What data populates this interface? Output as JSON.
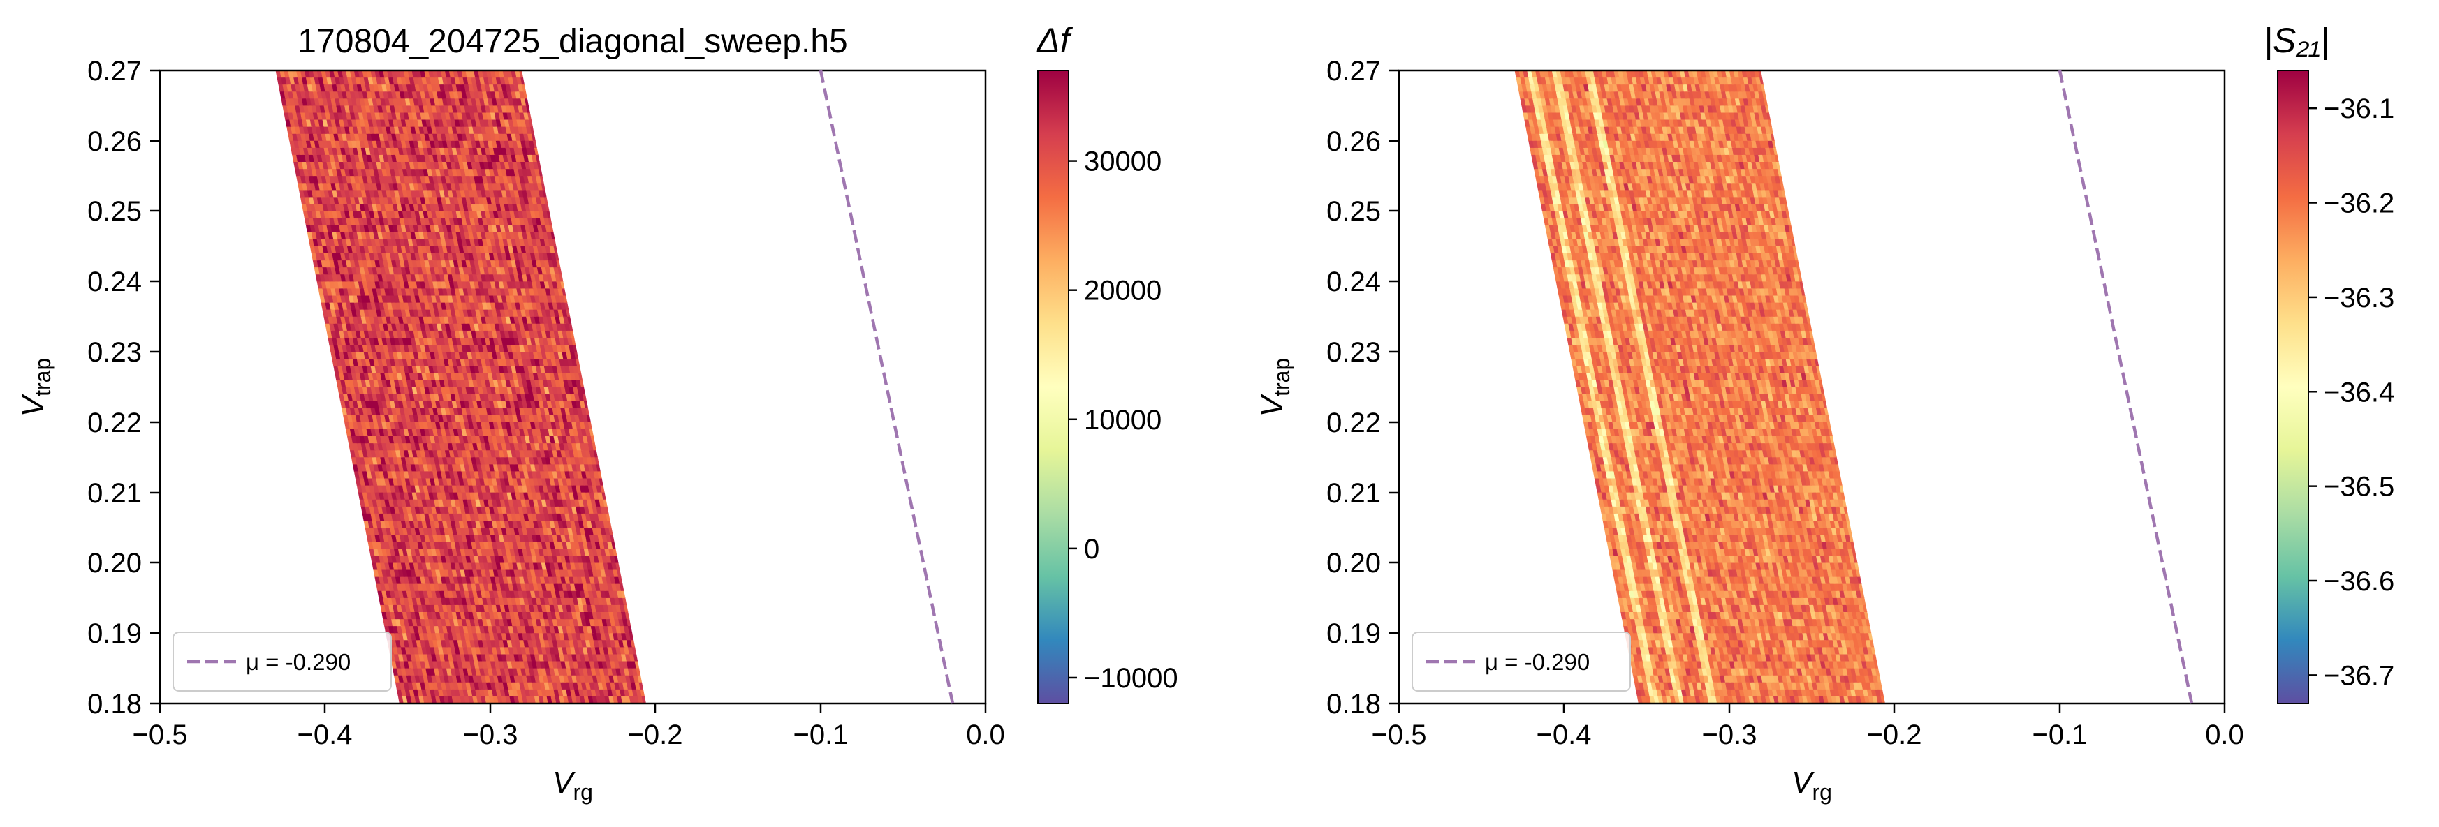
{
  "chart_data": [
    {
      "type": "heatmap",
      "title": "170804_204725_diagonal_sweep.h5",
      "xlabel": {
        "main": "V",
        "sub": "rg"
      },
      "ylabel": {
        "main": "V",
        "sub": "trap"
      },
      "xlim": [
        -0.5,
        0.0
      ],
      "ylim": [
        0.18,
        0.27
      ],
      "x_ticks": [
        "−0.5",
        "−0.4",
        "−0.3",
        "−0.2",
        "−0.1",
        "0.0"
      ],
      "x_tick_values": [
        -0.5,
        -0.4,
        -0.3,
        -0.2,
        -0.1,
        0.0
      ],
      "y_ticks": [
        "0.18",
        "0.19",
        "0.20",
        "0.21",
        "0.22",
        "0.23",
        "0.24",
        "0.25",
        "0.26",
        "0.27"
      ],
      "y_tick_values": [
        0.18,
        0.19,
        0.2,
        0.21,
        0.22,
        0.23,
        0.24,
        0.25,
        0.26,
        0.27
      ],
      "data_region": {
        "bottom": {
          "y": 0.18,
          "x_range": [
            -0.355,
            -0.205
          ]
        },
        "top": {
          "y": 0.27,
          "x_range": [
            -0.43,
            -0.28
          ]
        }
      },
      "colormap": "Spectral_r",
      "colorbar": {
        "label": "Δf",
        "range": [
          -12000,
          37000
        ],
        "ticks": [
          "−10000",
          "0",
          "10000",
          "20000",
          "30000"
        ],
        "tick_values": [
          -10000,
          0,
          10000,
          20000,
          30000
        ]
      },
      "typical_value": 31000,
      "value_spread": 5000,
      "bright_stripes": [],
      "dashed_line": {
        "points": [
          [
            -0.1,
            0.27
          ],
          [
            -0.02,
            0.18
          ]
        ],
        "color": "#9f76b0"
      },
      "legend": {
        "entries": [
          "μ = -0.290"
        ],
        "position": "lower-left"
      }
    },
    {
      "type": "heatmap",
      "title": "",
      "xlabel": {
        "main": "V",
        "sub": "rg"
      },
      "ylabel": {
        "main": "V",
        "sub": "trap"
      },
      "xlim": [
        -0.5,
        0.0
      ],
      "ylim": [
        0.18,
        0.27
      ],
      "x_ticks": [
        "−0.5",
        "−0.4",
        "−0.3",
        "−0.2",
        "−0.1",
        "0.0"
      ],
      "x_tick_values": [
        -0.5,
        -0.4,
        -0.3,
        -0.2,
        -0.1,
        0.0
      ],
      "y_ticks": [
        "0.18",
        "0.19",
        "0.20",
        "0.21",
        "0.22",
        "0.23",
        "0.24",
        "0.25",
        "0.26",
        "0.27"
      ],
      "y_tick_values": [
        0.18,
        0.19,
        0.2,
        0.21,
        0.22,
        0.23,
        0.24,
        0.25,
        0.26,
        0.27
      ],
      "data_region": {
        "bottom": {
          "y": 0.18,
          "x_range": [
            -0.355,
            -0.205
          ]
        },
        "top": {
          "y": 0.27,
          "x_range": [
            -0.43,
            -0.28
          ]
        }
      },
      "colormap": "Spectral_r",
      "colorbar": {
        "label": "|S₂₁|",
        "range": [
          -36.73,
          -36.06
        ],
        "ticks": [
          "−36.7",
          "−36.6",
          "−36.5",
          "−36.4",
          "−36.3",
          "−36.2",
          "−36.1"
        ],
        "tick_values": [
          -36.7,
          -36.6,
          -36.5,
          -36.4,
          -36.3,
          -36.2,
          -36.1
        ]
      },
      "typical_value": -36.21,
      "value_spread": 0.055,
      "bright_stripes": [
        -0.345,
        -0.33,
        -0.31
      ],
      "dashed_line": {
        "points": [
          [
            -0.1,
            0.27
          ],
          [
            -0.02,
            0.18
          ]
        ],
        "color": "#9f76b0"
      },
      "legend": {
        "entries": [
          "μ = -0.290"
        ],
        "position": "lower-left"
      }
    }
  ]
}
